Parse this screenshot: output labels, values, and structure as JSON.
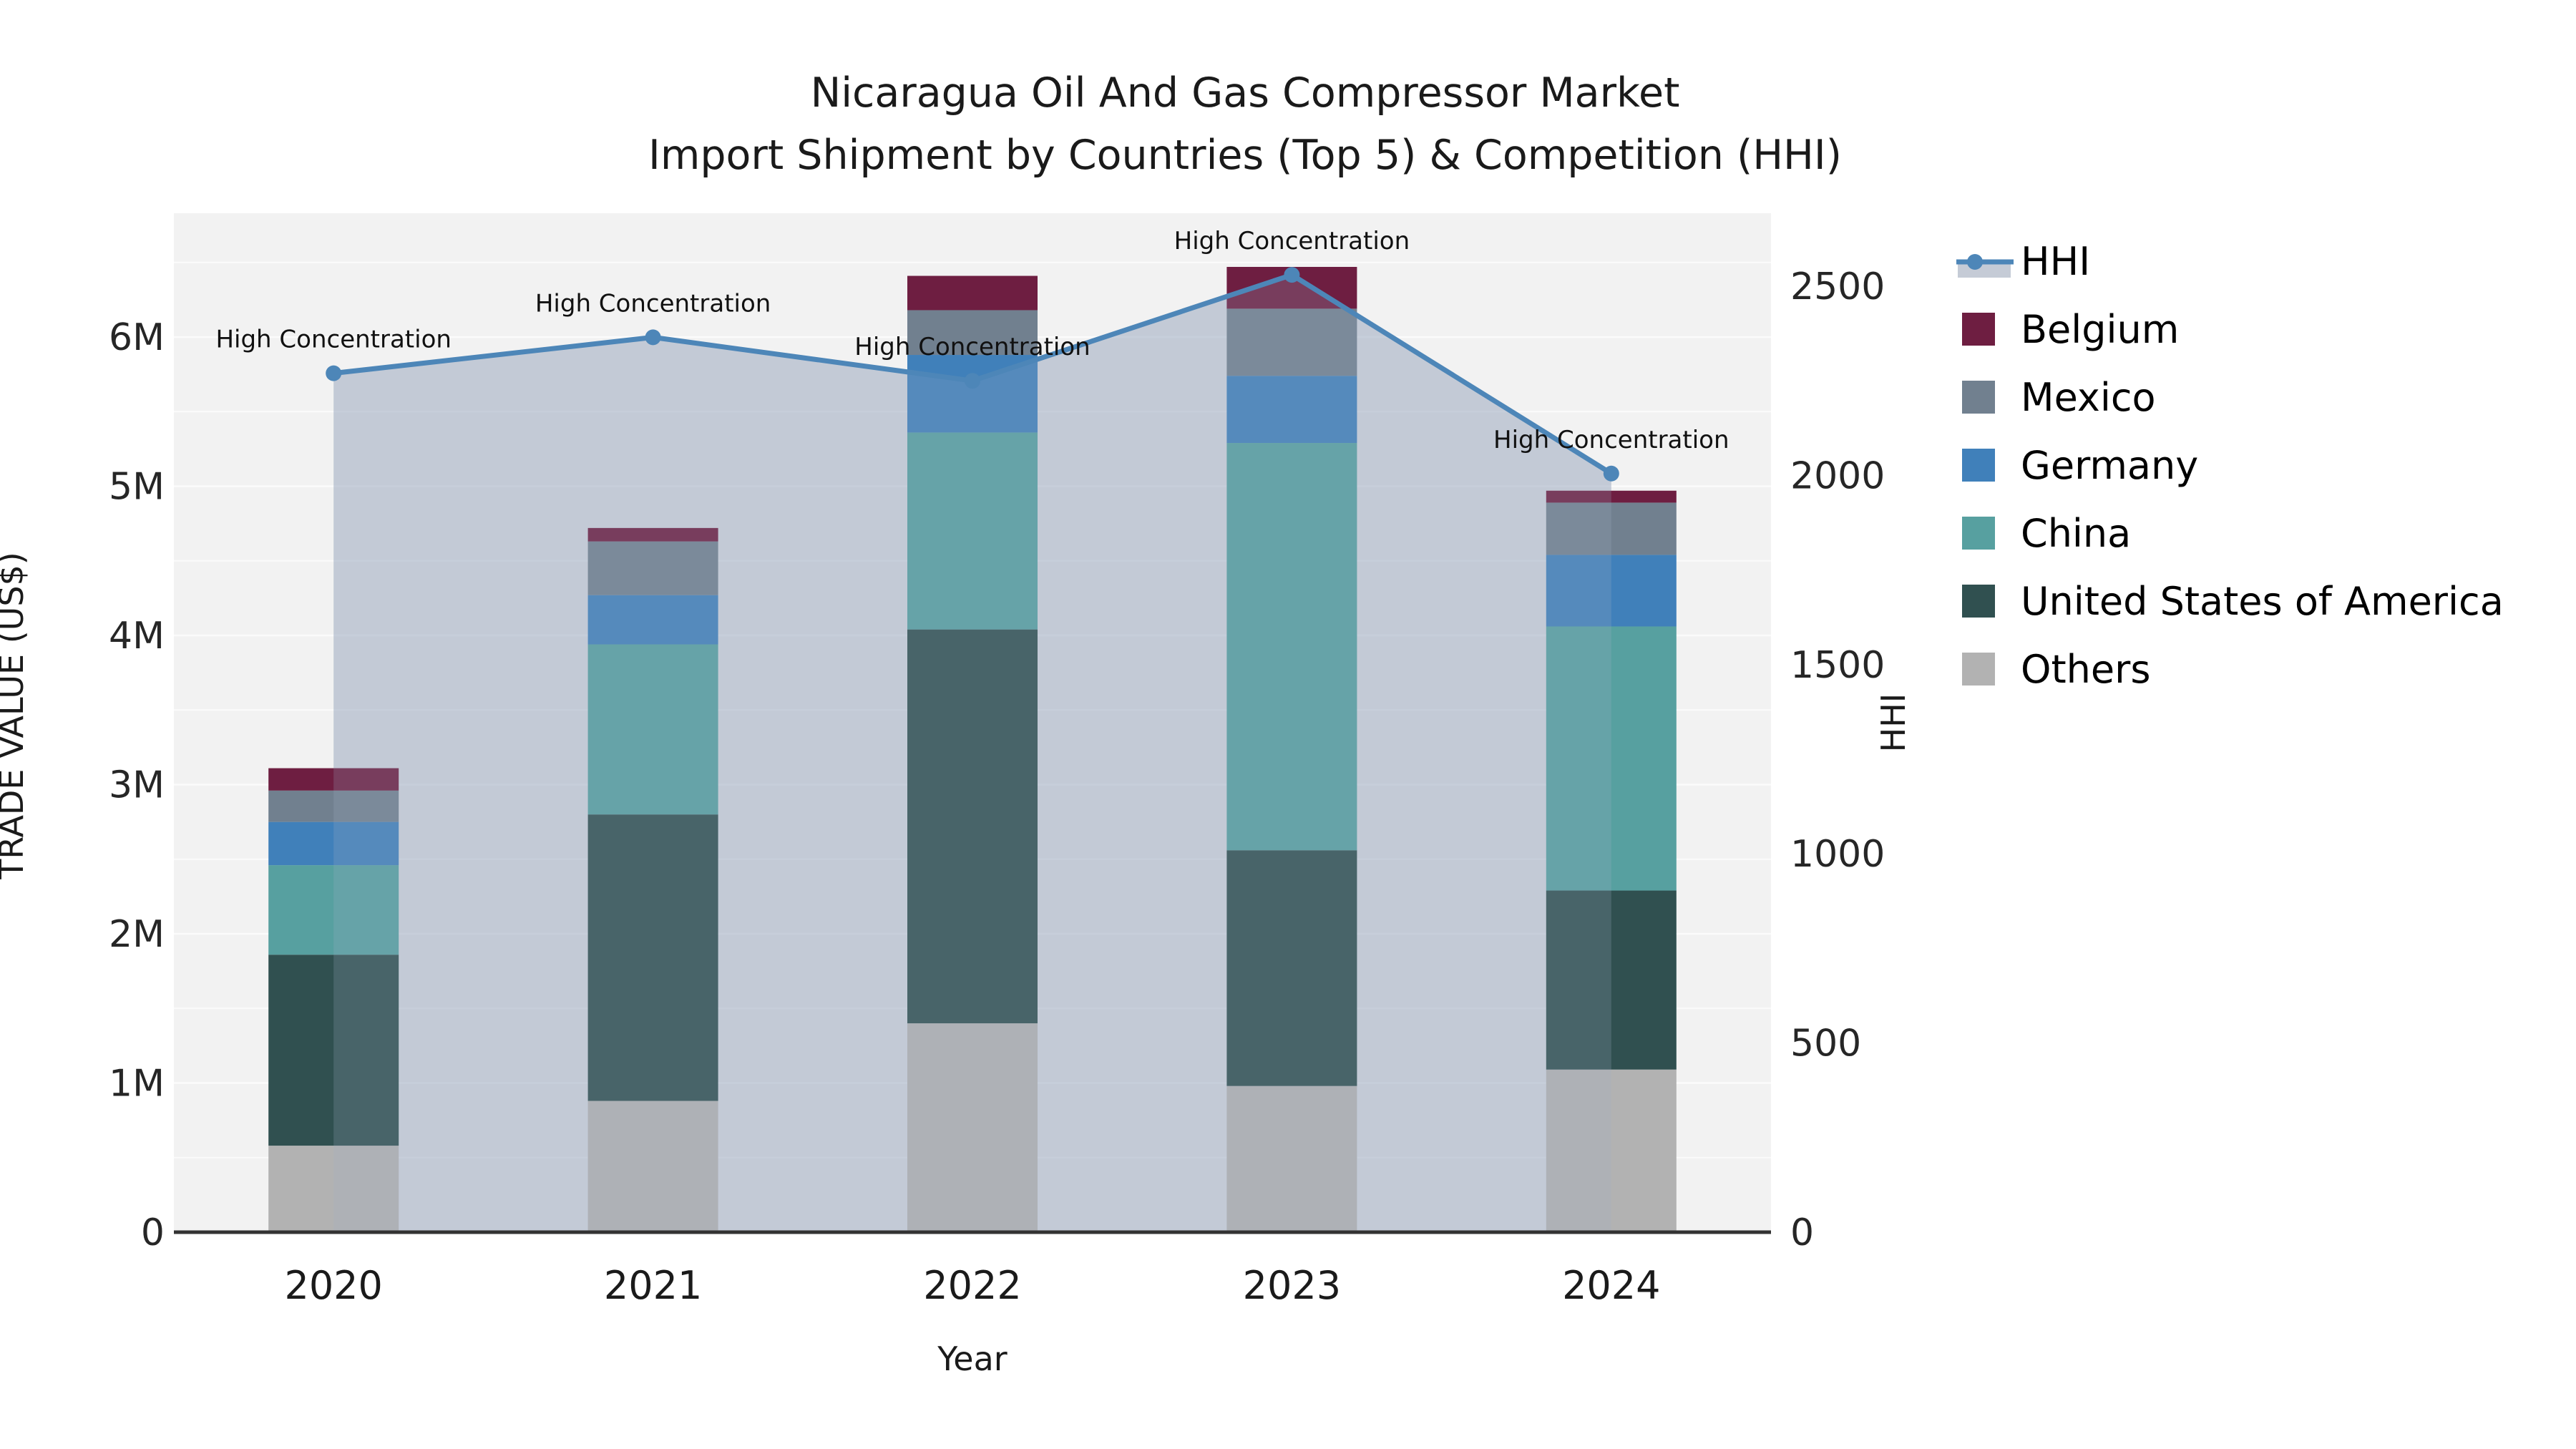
{
  "title": {
    "line1": "Nicaragua Oil And Gas Compressor Market",
    "line2": "Import Shipment by Countries (Top 5) & Competition (HHI)"
  },
  "axes": {
    "y_left": {
      "label": "TRADE VALUE (US$)",
      "tick_labels": [
        "0",
        "1M",
        "2M",
        "3M",
        "4M",
        "5M",
        "6M"
      ],
      "tick_values_musd": [
        0,
        1,
        2,
        3,
        4,
        5,
        6
      ],
      "range_musd": [
        0,
        6.83
      ]
    },
    "y_right": {
      "label": "HHI",
      "tick_labels": [
        "0",
        "500",
        "1000",
        "1500",
        "2000",
        "2500"
      ],
      "tick_values": [
        0,
        500,
        1000,
        1500,
        2000,
        2500
      ],
      "range": [
        0,
        2693
      ]
    },
    "x": {
      "label": "Year",
      "tick_labels": [
        "2020",
        "2021",
        "2022",
        "2023",
        "2024"
      ]
    }
  },
  "legend": {
    "items": [
      {
        "label": "HHI",
        "type": "line",
        "color": "#4d86b8",
        "band_color": "#c5cbd6"
      },
      {
        "label": "Belgium",
        "type": "patch",
        "color": "#6e1e41"
      },
      {
        "label": "Mexico",
        "type": "patch",
        "color": "#71808f"
      },
      {
        "label": "Germany",
        "type": "patch",
        "color": "#4080ba"
      },
      {
        "label": "China",
        "type": "patch",
        "color": "#57a0a0"
      },
      {
        "label": "United States of America",
        "type": "patch",
        "color": "#305050"
      },
      {
        "label": "Others",
        "type": "patch",
        "color": "#b2b2b2"
      }
    ]
  },
  "chart_data": {
    "type": "bar",
    "stacked": true,
    "unit": "USD millions (left axis), HHI index (right axis)",
    "grid": "horizontal, every 0.5M, white on light-gray plot background",
    "legend_position": "outside right, top",
    "categories": [
      "2020",
      "2021",
      "2022",
      "2023",
      "2024"
    ],
    "series": [
      {
        "name": "Others",
        "color": "#b2b2b2",
        "values_musd": [
          0.58,
          0.88,
          1.4,
          0.98,
          1.09
        ]
      },
      {
        "name": "United States of America",
        "color": "#305050",
        "values_musd": [
          1.28,
          1.92,
          2.64,
          1.58,
          1.2
        ]
      },
      {
        "name": "China",
        "color": "#57a0a0",
        "values_musd": [
          0.6,
          1.14,
          1.32,
          2.73,
          1.77
        ]
      },
      {
        "name": "Germany",
        "color": "#4080ba",
        "values_musd": [
          0.29,
          0.33,
          0.52,
          0.45,
          0.48
        ]
      },
      {
        "name": "Mexico",
        "color": "#71808f",
        "values_musd": [
          0.21,
          0.36,
          0.3,
          0.45,
          0.35
        ]
      },
      {
        "name": "Belgium",
        "color": "#6e1e41",
        "values_musd": [
          0.15,
          0.09,
          0.23,
          0.28,
          0.08
        ]
      }
    ],
    "bar_totals_musd": [
      3.11,
      4.72,
      6.41,
      6.47,
      4.97
    ],
    "line_series": {
      "name": "HHI",
      "axis": "right",
      "values": [
        2270,
        2365,
        2250,
        2530,
        2005
      ],
      "color": "#4d86b8",
      "marker": "circle",
      "area_fill": "#c9cfda",
      "area_note": "translucent area under line from first to last category, overlapping bars"
    },
    "annotation_text": "High Concentration",
    "annotation_note": "one annotation centered above each HHI point",
    "plot_background": "#f2f2f2",
    "axis_line_color": "#333333"
  }
}
